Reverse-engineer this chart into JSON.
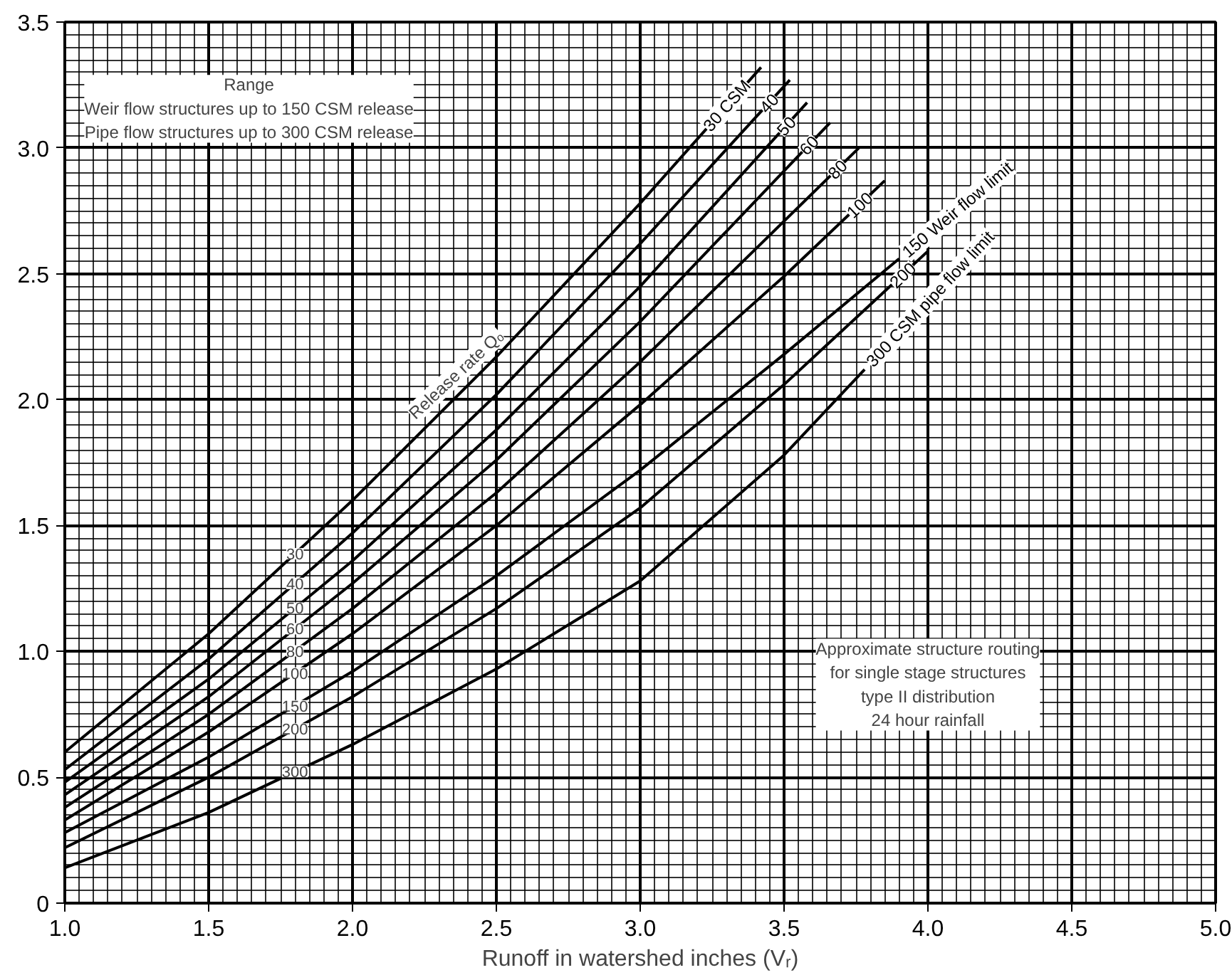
{
  "chart_data": {
    "type": "line",
    "xlabel": "Runoff in watershed inches (Vᵣ)",
    "xlim": [
      1.0,
      5.0
    ],
    "ylim": [
      0,
      3.5
    ],
    "xticks": [
      {
        "value": 1.0,
        "label": "1.0"
      },
      {
        "value": 1.5,
        "label": "1.5"
      },
      {
        "value": 2.0,
        "label": "2.0"
      },
      {
        "value": 2.5,
        "label": "2.5"
      },
      {
        "value": 3.0,
        "label": "3.0"
      },
      {
        "value": 3.5,
        "label": "3.5"
      },
      {
        "value": 4.0,
        "label": "4.0"
      },
      {
        "value": 4.5,
        "label": "4.5"
      },
      {
        "value": 5.0,
        "label": "5.0"
      }
    ],
    "yticks": [
      0,
      0.5,
      {
        "value": 1.0,
        "label": "1.0"
      },
      1.5,
      {
        "value": 2.0,
        "label": "2.0"
      },
      2.5,
      {
        "value": 3.0,
        "label": "3.0"
      },
      3.5
    ],
    "grid": true,
    "marker": "none",
    "line_style": "solid",
    "series": [
      {
        "name": "30 CSM",
        "color": "#000000",
        "x": [
          1.0,
          1.5,
          2.0,
          2.5,
          3.0,
          3.42
        ],
        "values": [
          0.6,
          1.07,
          1.6,
          2.17,
          2.78,
          3.32
        ]
      },
      {
        "name": "40",
        "color": "#000000",
        "x": [
          1.0,
          1.5,
          2.0,
          2.5,
          3.0,
          3.52
        ],
        "values": [
          0.53,
          0.97,
          1.47,
          2.02,
          2.62,
          3.27
        ]
      },
      {
        "name": "50",
        "color": "#000000",
        "x": [
          1.0,
          1.5,
          2.0,
          2.5,
          3.0,
          3.58
        ],
        "values": [
          0.48,
          0.89,
          1.36,
          1.88,
          2.45,
          3.18
        ]
      },
      {
        "name": "60",
        "color": "#000000",
        "x": [
          1.0,
          1.5,
          2.0,
          2.5,
          3.0,
          3.66
        ],
        "values": [
          0.43,
          0.82,
          1.27,
          1.76,
          2.31,
          3.1
        ]
      },
      {
        "name": "80",
        "color": "#000000",
        "x": [
          1.0,
          1.5,
          2.0,
          2.5,
          3.0,
          3.76
        ],
        "values": [
          0.38,
          0.75,
          1.17,
          1.63,
          2.15,
          3.0
        ]
      },
      {
        "name": "100",
        "color": "#000000",
        "x": [
          1.0,
          1.5,
          2.0,
          2.5,
          3.0,
          3.5,
          3.85
        ],
        "values": [
          0.33,
          0.68,
          1.07,
          1.5,
          1.98,
          2.49,
          2.87
        ]
      },
      {
        "name": "150 Weir flow limit",
        "color": "#000000",
        "x": [
          1.0,
          1.5,
          2.0,
          2.5,
          3.0,
          3.5,
          3.9
        ],
        "values": [
          0.28,
          0.58,
          0.92,
          1.3,
          1.72,
          2.18,
          2.56
        ]
      },
      {
        "name": "200",
        "color": "#000000",
        "x": [
          1.0,
          1.5,
          2.0,
          2.5,
          3.0,
          3.5,
          4.0
        ],
        "values": [
          0.22,
          0.5,
          0.82,
          1.17,
          1.57,
          2.06,
          2.59
        ]
      },
      {
        "name": "300 CSM pipe flow limit",
        "color": "#000000",
        "x": [
          1.0,
          1.5,
          2.0,
          2.5,
          3.0,
          3.5,
          3.78
        ],
        "values": [
          0.14,
          0.36,
          0.63,
          0.93,
          1.28,
          1.78,
          2.12
        ]
      }
    ],
    "annotations": [
      "Range\nWeir flow structures up to 150 CSM release\nPipe flow structures up to 300 CSM release",
      "Approximate structure routing\nfor single stage structures\ntype II distribution\n24 hour rainfall",
      "Release rate Qₒ",
      "30",
      "40",
      "50",
      "60",
      "80",
      "100",
      "150",
      "200",
      "300"
    ]
  }
}
